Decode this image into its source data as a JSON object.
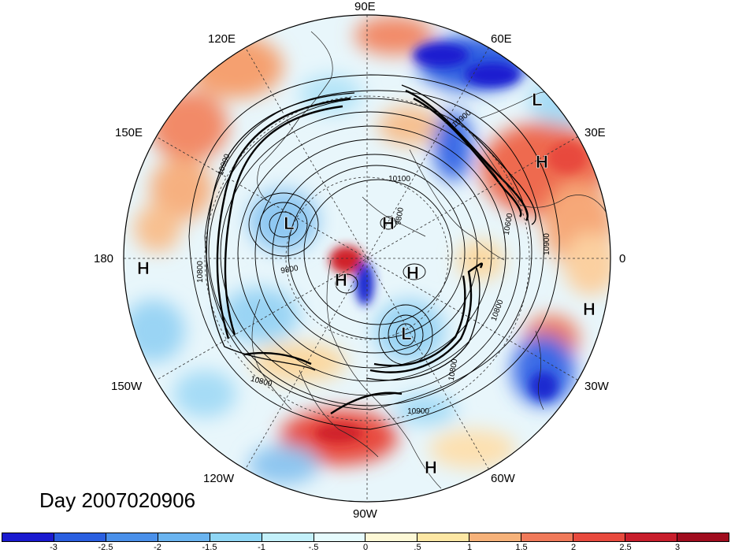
{
  "title": "Day 2007020906",
  "longitude_labels": {
    "lon_90E": "90E",
    "lon_60E": "60E",
    "lon_30E": "30E",
    "lon_0": "0",
    "lon_30W": "30W",
    "lon_60W": "60W",
    "lon_90W": "90W",
    "lon_120W": "120W",
    "lon_150W": "150W",
    "lon_180": "180",
    "lon_150E": "150E",
    "lon_120E": "120E"
  },
  "pressure_centers": [
    {
      "type": "L"
    },
    {
      "type": "H"
    },
    {
      "type": "H"
    },
    {
      "type": "L"
    },
    {
      "type": "H"
    },
    {
      "type": "H"
    },
    {
      "type": "H"
    },
    {
      "type": "H"
    },
    {
      "type": "L"
    },
    {
      "type": "H"
    }
  ],
  "contour_labels": [
    "10900",
    "10800",
    "10100",
    "9800",
    "9800",
    "10600",
    "10800",
    "10800",
    "10900",
    "10900",
    "10800",
    "10900"
  ],
  "colorbar": {
    "colors": [
      "#1a1ad0",
      "#2a5fe0",
      "#4a90ea",
      "#6ab4f0",
      "#8fd6f5",
      "#c3f0fa",
      "#e6fbfd",
      "#fdf8d6",
      "#fde7a4",
      "#f6b27a",
      "#f07a5a",
      "#e84a3e",
      "#c81e2c",
      "#a00c1e"
    ],
    "tick_labels": [
      "-3",
      "-2.5",
      "-2",
      "-1.5",
      "-1",
      "-.5",
      "0",
      ".5",
      "1",
      "1.5",
      "2",
      "2.5",
      "3"
    ]
  }
}
